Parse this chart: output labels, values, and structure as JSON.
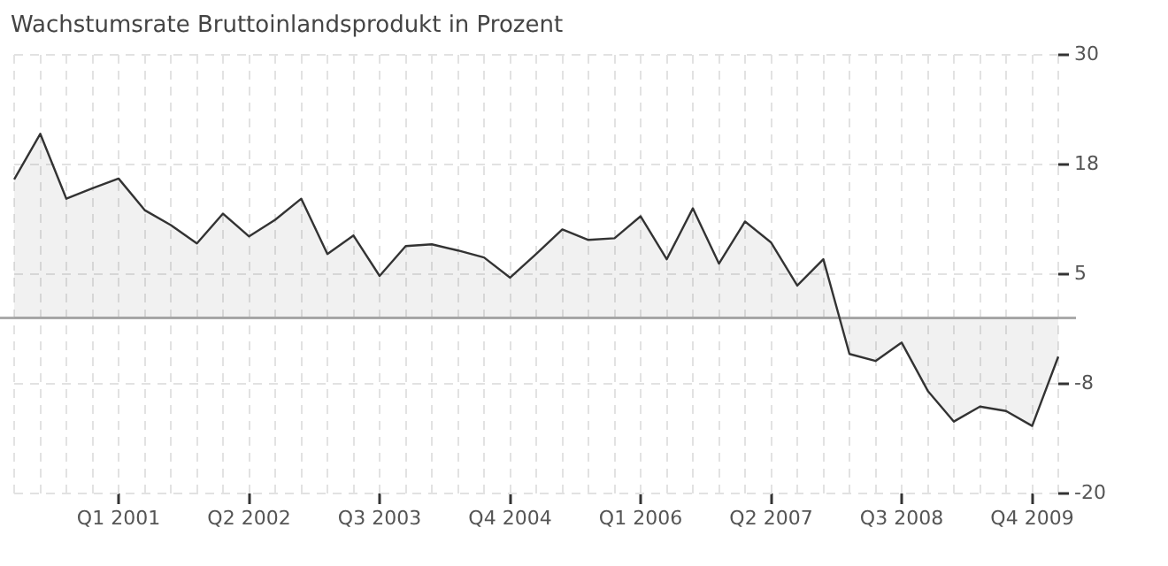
{
  "chart_data": {
    "type": "area",
    "title": "Wachstumsrate Bruttoinlandsprodukt in Prozent",
    "categories": [
      null,
      null,
      null,
      null,
      "Q1 2001",
      null,
      null,
      null,
      null,
      "Q2 2002",
      null,
      null,
      null,
      null,
      "Q3 2003",
      null,
      null,
      null,
      null,
      "Q4 2004",
      null,
      null,
      null,
      null,
      "Q1 2006",
      null,
      null,
      null,
      null,
      "Q2 2007",
      null,
      null,
      null,
      null,
      "Q3 2008",
      null,
      null,
      null,
      null,
      "Q4 2009",
      null
    ],
    "series": [
      {
        "color": "#333333",
        "values": [
          15.8,
          21.0,
          13.6,
          14.8,
          15.9,
          12.3,
          10.6,
          8.5,
          11.9,
          9.3,
          11.2,
          13.6,
          7.3,
          9.4,
          4.8,
          8.2,
          8.4,
          7.7,
          6.9,
          4.6,
          7.3,
          10.1,
          8.9,
          9.1,
          11.6,
          6.7,
          12.5,
          6.2,
          11.0,
          8.6,
          3.7,
          6.7,
          -4.1,
          -4.9,
          -2.8,
          -8.3,
          -11.8,
          -10.1,
          -10.6,
          -12.3,
          -4.4
        ]
      }
    ],
    "ylim": [
      -20,
      30
    ],
    "yticks": [
      -20,
      {
        "value": -7.5,
        "label": "-8"
      },
      5,
      {
        "value": 17.5,
        "label": "18"
      },
      30
    ],
    "ref_lines": [
      {
        "axis": "y",
        "value": 0,
        "label": null,
        "color": "#aaaaaa"
      }
    ],
    "grid": true,
    "legend": false,
    "marker": "none",
    "line_style": "solid"
  }
}
